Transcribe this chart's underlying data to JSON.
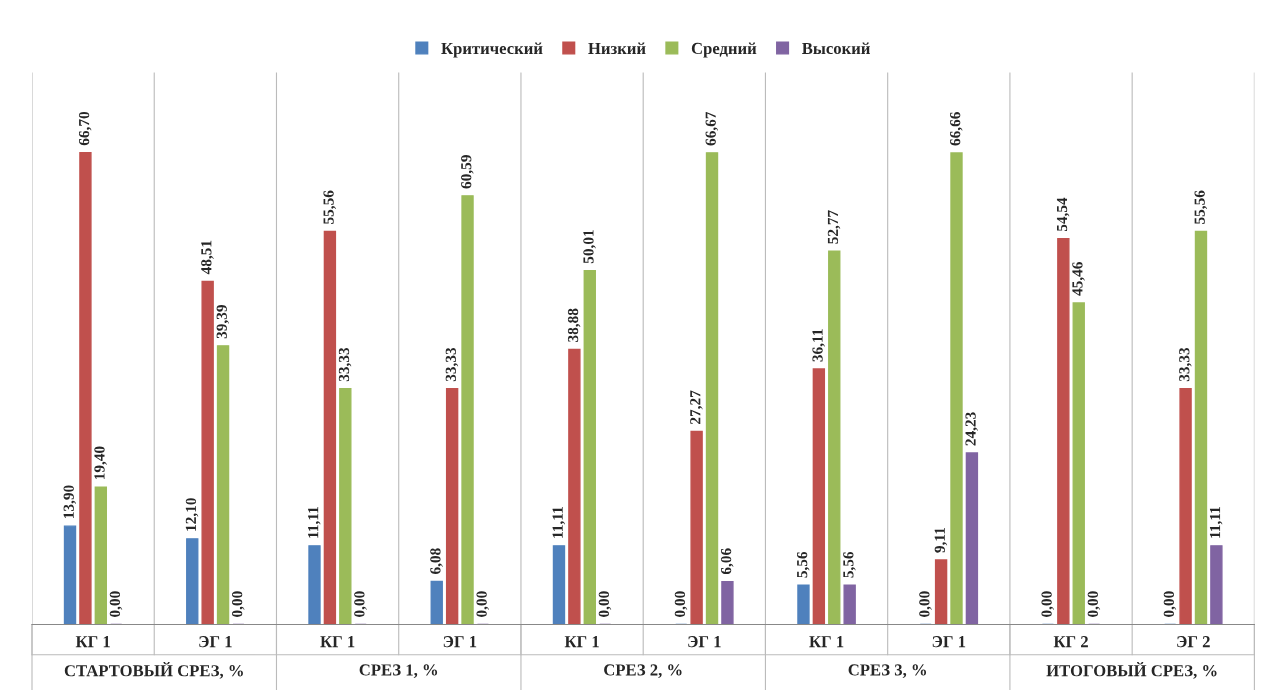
{
  "chart_data": {
    "type": "bar",
    "categories": [
      "КГ 1",
      "ЭГ 1",
      "КГ 1",
      "ЭГ 1",
      "КГ 1",
      "ЭГ 1",
      "КГ 1",
      "ЭГ 1",
      "КГ 2",
      "ЭГ 2"
    ],
    "series": [
      {
        "name": "Критический",
        "color": "#4f81bd",
        "values": [
          13.9,
          12.1,
          11.11,
          6.08,
          11.11,
          0.0,
          5.56,
          0.0,
          0.0,
          0.0
        ],
        "value_labels": [
          "13,90",
          "12,10",
          "11,11",
          "6,08",
          "11,11",
          "0,00",
          "5,56",
          "0,00",
          "0,00",
          "0,00"
        ]
      },
      {
        "name": "Низкий",
        "color": "#c0504d",
        "values": [
          66.7,
          48.51,
          55.56,
          33.33,
          38.88,
          27.27,
          36.11,
          9.11,
          54.54,
          33.33
        ],
        "value_labels": [
          "66,70",
          "48,51",
          "55,56",
          "33,33",
          "38,88",
          "27,27",
          "36,11",
          "9,11",
          "54,54",
          "33,33"
        ]
      },
      {
        "name": "Средний",
        "color": "#9bbb59",
        "values": [
          19.4,
          39.39,
          33.33,
          60.59,
          50.01,
          66.67,
          52.77,
          66.66,
          45.46,
          55.56
        ],
        "value_labels": [
          "19,40",
          "39,39",
          "33,33",
          "60,59",
          "50,01",
          "66,67",
          "52,77",
          "66,66",
          "45,46",
          "55,56"
        ]
      },
      {
        "name": "Высокий",
        "color": "#8064a2",
        "values": [
          0.0,
          0.0,
          0.0,
          0.0,
          0.0,
          6.06,
          5.56,
          24.23,
          0.0,
          11.11
        ],
        "value_labels": [
          "0,00",
          "0,00",
          "0,00",
          "0,00",
          "0,00",
          "6,06",
          "5,56",
          "24,23",
          "0,00",
          "11,11"
        ]
      }
    ],
    "annotations": [
      "СТАРТОВЫЙ СРЕЗ, %",
      "СРЕЗ 1, %",
      "СРЕЗ 2, %",
      "СРЕЗ 3, %",
      "ИТОГОВЫЙ СРЕЗ, %"
    ],
    "grid": "x",
    "legend": "top"
  }
}
